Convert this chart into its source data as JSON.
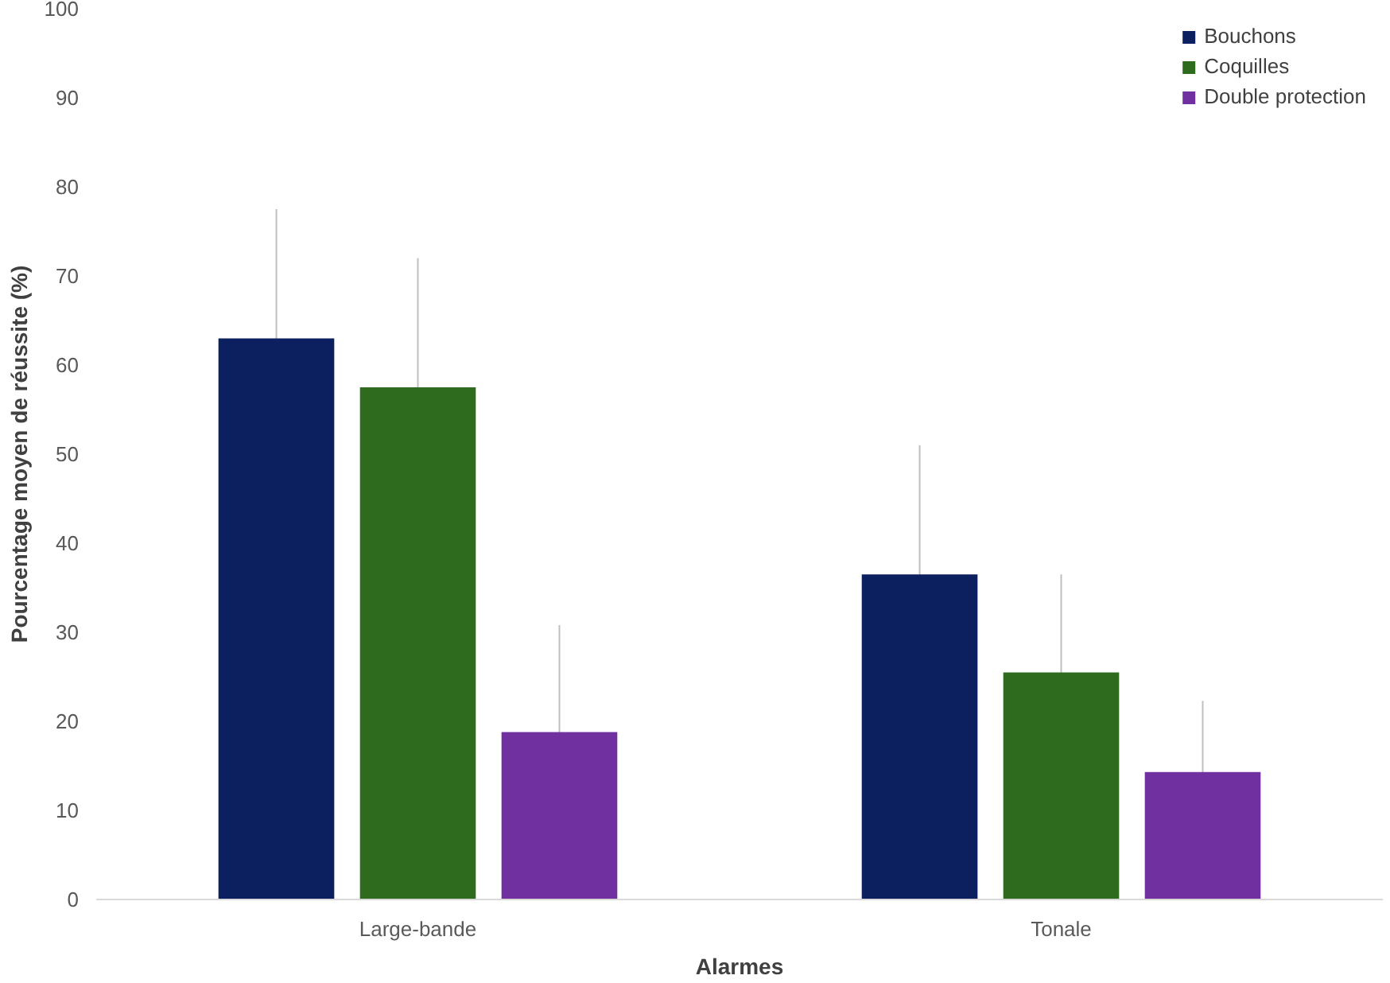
{
  "chart_data": {
    "type": "bar",
    "xlabel": "Alarmes",
    "ylabel": "Pourcentage moyen de réussite (%)",
    "categories": [
      "Large-bande",
      "Tonale"
    ],
    "series": [
      {
        "name": "Bouchons",
        "color": "#0c1f5e",
        "values": [
          63,
          36.5
        ],
        "errors": [
          14.5,
          14.5
        ]
      },
      {
        "name": "Coquilles",
        "color": "#2e6b1e",
        "values": [
          57.5,
          25.5
        ],
        "errors": [
          14.5,
          11
        ]
      },
      {
        "name": "Double protection",
        "color": "#7030a0",
        "values": [
          18.8,
          14.3
        ],
        "errors": [
          12,
          8
        ]
      }
    ],
    "ylim": [
      0,
      100
    ],
    "yticks": [
      0,
      10,
      20,
      30,
      40,
      50,
      60,
      70,
      80,
      90,
      100
    ],
    "grid": false,
    "legend": "top right"
  }
}
